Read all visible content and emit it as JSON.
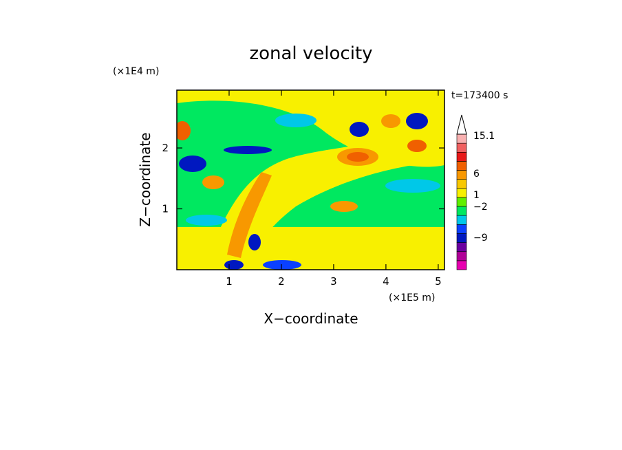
{
  "chart_data": {
    "type": "heatmap",
    "title": "zonal velocity",
    "xlabel": "X−coordinate",
    "ylabel": "Z−coordinate",
    "x_unit": "(×1E5 m)",
    "y_unit": "(×1E4 m)",
    "time_label": "t=173400 s",
    "xlim": [
      0,
      5.12
    ],
    "ylim": [
      0,
      2.95
    ],
    "x_ticks": [
      "1",
      "2",
      "3",
      "4",
      "5"
    ],
    "x_tick_values": [
      1,
      2,
      3,
      4,
      5
    ],
    "y_ticks": [
      "1",
      "2"
    ],
    "y_tick_values": [
      1,
      2
    ],
    "colorbar": {
      "colors": [
        "#e800b0",
        "#b00098",
        "#6a00a0",
        "#0018c0",
        "#0a40ff",
        "#00c8e8",
        "#00e860",
        "#60f000",
        "#f8f000",
        "#f8c800",
        "#f89800",
        "#f06000",
        "#e81818",
        "#f06060",
        "#f8b0b0"
      ],
      "labels": [
        "15.1",
        "6",
        "1",
        "−2",
        "−9"
      ],
      "label_values": [
        15.1,
        6,
        1,
        -2,
        -9
      ],
      "extend": "max"
    }
  }
}
